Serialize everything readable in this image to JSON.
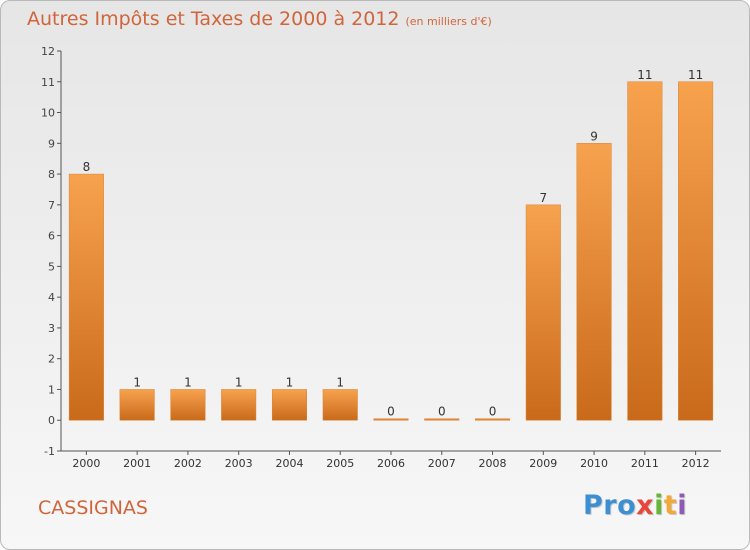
{
  "header": {
    "title": "Autres Impôts et Taxes de 2000 à 2012",
    "unit": "(en milliers d'€)"
  },
  "footer": {
    "town": "CASSIGNAS",
    "brand": {
      "p1": "Pro",
      "p2": "x",
      "p3": "i",
      "p4": "t",
      "p5": "i"
    }
  },
  "colors": {
    "bar_light": "#f7a24e",
    "bar_dark": "#c96a1b",
    "axis": "#555555",
    "title": "#d0653b"
  },
  "chart_data": {
    "type": "bar",
    "title": "Autres Impôts et Taxes de 2000 à 2012",
    "xlabel": "",
    "ylabel": "",
    "categories": [
      "2000",
      "2001",
      "2002",
      "2003",
      "2004",
      "2005",
      "2006",
      "2007",
      "2008",
      "2009",
      "2010",
      "2011",
      "2012"
    ],
    "values": [
      8,
      1,
      1,
      1,
      1,
      1,
      0,
      0,
      0,
      7,
      9,
      11,
      11
    ],
    "ylim": [
      -1,
      12
    ],
    "yticks": [
      -1,
      0,
      1,
      2,
      3,
      4,
      5,
      6,
      7,
      8,
      9,
      10,
      11,
      12
    ],
    "grid": false,
    "data_labels": true
  }
}
